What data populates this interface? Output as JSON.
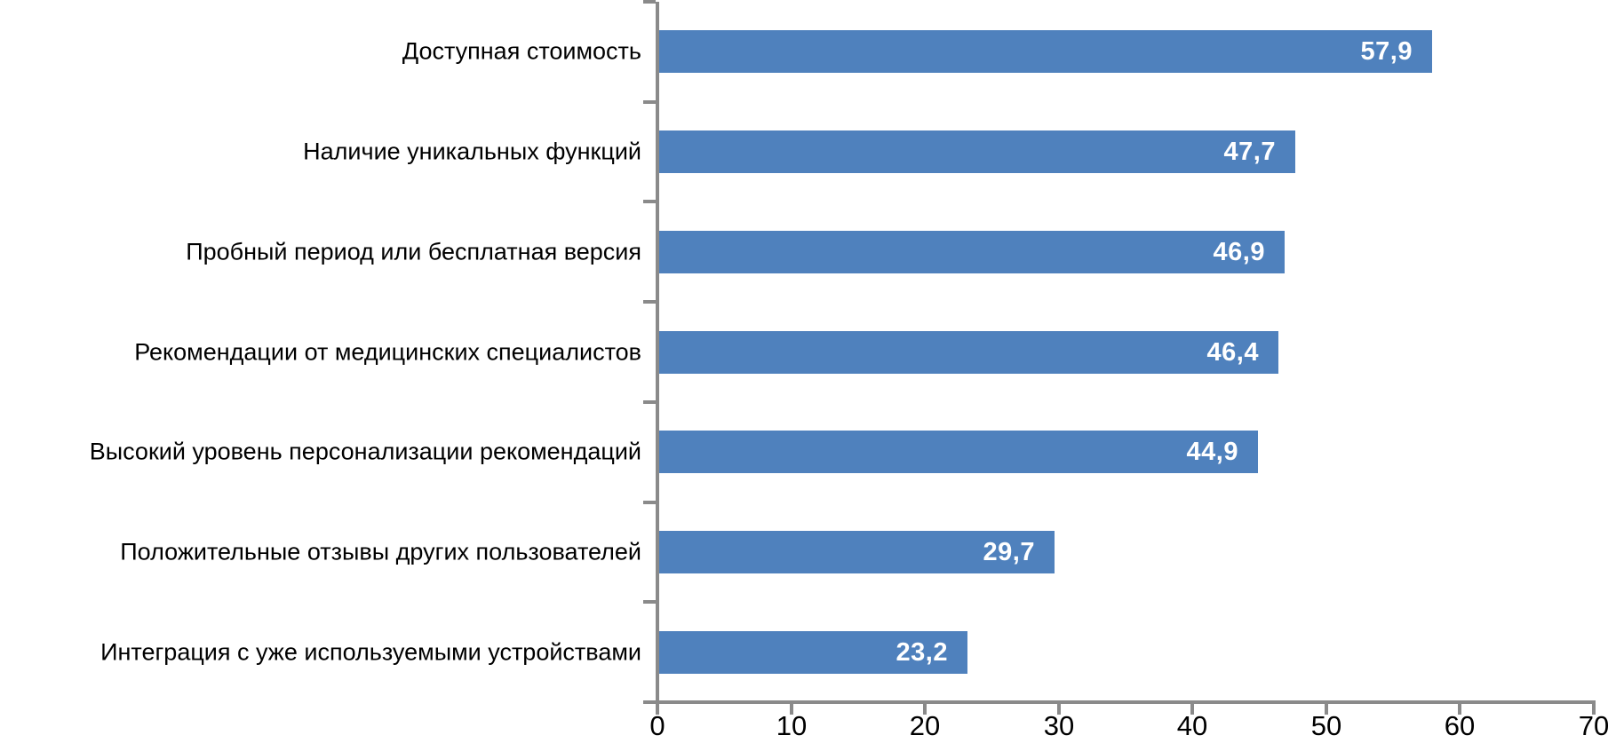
{
  "chart_data": {
    "type": "bar",
    "orientation": "horizontal",
    "title": "",
    "xlabel": "",
    "ylabel": "",
    "categories": [
      "Доступная стоимость",
      "Наличие уникальных функций",
      "Пробный период или бесплатная версия",
      "Рекомендации от медицинских специалистов",
      "Высокий уровень персонализации рекомендаций",
      "Положительные отзывы других пользователей",
      "Интеграция с уже используемыми устройствами"
    ],
    "values": [
      57.9,
      47.7,
      46.9,
      46.4,
      44.9,
      29.7,
      23.2
    ],
    "value_labels": [
      "57,9",
      "47,7",
      "46,9",
      "46,4",
      "44,9",
      "29,7",
      "23,2"
    ],
    "xlim": [
      0,
      70
    ],
    "x_ticks": [
      0,
      10,
      20,
      30,
      40,
      50,
      60,
      70
    ],
    "x_tick_labels": [
      "0",
      "10",
      "20",
      "30",
      "40",
      "50",
      "60",
      "70"
    ],
    "grid": "off",
    "legend": "none",
    "data_label_position": "inside-end",
    "colors": {
      "bar": "#4F81BD",
      "value_label": "#FFFFFF",
      "axis": "#8A8A8A",
      "category_label": "#000000",
      "tick_label": "#000000",
      "background": "#FFFFFF"
    }
  }
}
